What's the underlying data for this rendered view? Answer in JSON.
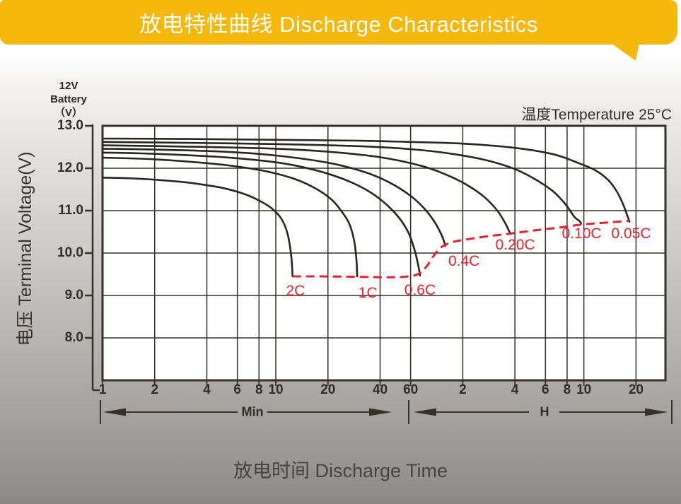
{
  "banner": {
    "title": "放电特性曲线 Discharge Characteristics",
    "bg_color": "#F6B80B",
    "text_color": "#FFFFFF"
  },
  "note": {
    "temperature": "温度Temperature 25°C"
  },
  "y_axis": {
    "unit_lines": [
      "12V",
      "Battery",
      "（V）"
    ],
    "title": "电压 Terminal Voltage(V)",
    "ticks": [
      {
        "label": "13.0",
        "v": 13.0
      },
      {
        "label": "12.0",
        "v": 12.0
      },
      {
        "label": "11.0",
        "v": 11.0
      },
      {
        "label": "10.0",
        "v": 10.0
      },
      {
        "label": "9.0",
        "v": 9.0
      },
      {
        "label": "8.0",
        "v": 8.0
      }
    ]
  },
  "x_axis": {
    "title": "放电时间 Discharge Time",
    "unit_min": "Min",
    "unit_hour": "H",
    "minute_ticks": [
      {
        "label": "1",
        "t": 1
      },
      {
        "label": "2",
        "t": 2
      },
      {
        "label": "4",
        "t": 4
      },
      {
        "label": "6",
        "t": 6
      },
      {
        "label": "8",
        "t": 8
      },
      {
        "label": "10",
        "t": 10
      },
      {
        "label": "20",
        "t": 20
      },
      {
        "label": "40",
        "t": 40
      },
      {
        "label": "60",
        "t": 60
      }
    ],
    "hour_ticks": [
      {
        "label": "2",
        "t": 120
      },
      {
        "label": "4",
        "t": 240
      },
      {
        "label": "6",
        "t": 360
      },
      {
        "label": "8",
        "t": 480
      },
      {
        "label": "10",
        "t": 600
      },
      {
        "label": "20",
        "t": 1200
      }
    ]
  },
  "colors": {
    "curve": "#2B2521",
    "grid": "#363029",
    "cutoff": "#E8212E",
    "plot_bg": "#FFFFFF"
  },
  "chart_data": {
    "type": "line",
    "title": "放电特性曲线 Discharge Characteristics",
    "xlabel": "放电时间 Discharge Time",
    "ylabel": "电压 Terminal Voltage(V)",
    "battery": "12V Battery",
    "temperature": "25°C",
    "x_scale": "log",
    "x_unit": "minutes",
    "x_range_minutes": [
      1,
      1780
    ],
    "y_range": [
      7,
      13
    ],
    "grid": true,
    "series": [
      {
        "name": "0.05C",
        "label_t": 1125,
        "label_v": 10.45,
        "points": [
          [
            1,
            12.7
          ],
          [
            3,
            12.69
          ],
          [
            10,
            12.67
          ],
          [
            30,
            12.65
          ],
          [
            60,
            12.62
          ],
          [
            120,
            12.58
          ],
          [
            240,
            12.48
          ],
          [
            400,
            12.33
          ],
          [
            560,
            12.12
          ],
          [
            700,
            11.95
          ],
          [
            830,
            11.72
          ],
          [
            930,
            11.45
          ],
          [
            1010,
            11.15
          ],
          [
            1065,
            10.9
          ],
          [
            1100,
            10.74
          ]
        ]
      },
      {
        "name": "0.10C",
        "label_t": 583,
        "label_v": 10.45,
        "points": [
          [
            1,
            12.62
          ],
          [
            3,
            12.6
          ],
          [
            10,
            12.57
          ],
          [
            30,
            12.52
          ],
          [
            60,
            12.45
          ],
          [
            100,
            12.35
          ],
          [
            160,
            12.2
          ],
          [
            240,
            11.98
          ],
          [
            320,
            11.72
          ],
          [
            400,
            11.45
          ],
          [
            470,
            11.15
          ],
          [
            530,
            10.85
          ],
          [
            565,
            10.76
          ],
          [
            578,
            10.7
          ]
        ]
      },
      {
        "name": "0.20C",
        "label_t": 241,
        "label_v": 10.18,
        "points": [
          [
            1,
            12.54
          ],
          [
            3,
            12.51
          ],
          [
            10,
            12.46
          ],
          [
            20,
            12.39
          ],
          [
            40,
            12.26
          ],
          [
            70,
            12.05
          ],
          [
            100,
            11.82
          ],
          [
            130,
            11.58
          ],
          [
            160,
            11.32
          ],
          [
            190,
            11.0
          ],
          [
            210,
            10.72
          ],
          [
            222,
            10.52
          ],
          [
            227,
            10.45
          ]
        ]
      },
      {
        "name": "0.4C",
        "label_t": 122,
        "label_v": 9.8,
        "points": [
          [
            1,
            12.46
          ],
          [
            2,
            12.44
          ],
          [
            5,
            12.39
          ],
          [
            10,
            12.3
          ],
          [
            20,
            12.13
          ],
          [
            32,
            11.92
          ],
          [
            45,
            11.67
          ],
          [
            60,
            11.35
          ],
          [
            72,
            11.05
          ],
          [
            82,
            10.75
          ],
          [
            90,
            10.45
          ],
          [
            94,
            10.25
          ],
          [
            95,
            10.17
          ]
        ]
      },
      {
        "name": "0.6C",
        "label_t": 68,
        "label_v": 9.12,
        "points": [
          [
            1,
            12.37
          ],
          [
            2,
            12.34
          ],
          [
            5,
            12.26
          ],
          [
            10,
            12.14
          ],
          [
            16,
            11.98
          ],
          [
            24,
            11.76
          ],
          [
            33,
            11.5
          ],
          [
            42,
            11.2
          ],
          [
            51,
            10.85
          ],
          [
            58,
            10.5
          ],
          [
            63,
            10.1
          ],
          [
            66.5,
            9.7
          ],
          [
            68,
            9.47
          ]
        ]
      },
      {
        "name": "1C",
        "label_t": 34,
        "label_v": 9.05,
        "points": [
          [
            1,
            12.25
          ],
          [
            2,
            12.21
          ],
          [
            4,
            12.12
          ],
          [
            6,
            12.04
          ],
          [
            9,
            11.92
          ],
          [
            13,
            11.74
          ],
          [
            17,
            11.52
          ],
          [
            21,
            11.26
          ],
          [
            24,
            10.98
          ],
          [
            26.5,
            10.7
          ],
          [
            28.3,
            10.3
          ],
          [
            29.2,
            9.85
          ],
          [
            29.5,
            9.45
          ]
        ]
      },
      {
        "name": "2C",
        "label_t": 13,
        "label_v": 9.1,
        "points": [
          [
            1,
            11.78
          ],
          [
            1.5,
            11.76
          ],
          [
            2,
            11.73
          ],
          [
            3,
            11.67
          ],
          [
            4,
            11.6
          ],
          [
            5,
            11.53
          ],
          [
            6.5,
            11.4
          ],
          [
            8,
            11.24
          ],
          [
            9.5,
            11.05
          ],
          [
            10.8,
            10.8
          ],
          [
            11.7,
            10.45
          ],
          [
            12.3,
            9.9
          ],
          [
            12.5,
            9.45
          ]
        ]
      }
    ],
    "cutoff_line": {
      "name": "discharge-cutoff-voltage",
      "style": "dashed",
      "color": "#E8212E",
      "points": [
        [
          12.5,
          9.45
        ],
        [
          18,
          9.45
        ],
        [
          29.5,
          9.44
        ],
        [
          42,
          9.43
        ],
        [
          55,
          9.44
        ],
        [
          66,
          9.5
        ],
        [
          74,
          9.68
        ],
        [
          83,
          9.98
        ],
        [
          91,
          10.15
        ],
        [
          105,
          10.26
        ],
        [
          130,
          10.33
        ],
        [
          170,
          10.4
        ],
        [
          227,
          10.46
        ],
        [
          320,
          10.54
        ],
        [
          430,
          10.6
        ],
        [
          578,
          10.67
        ],
        [
          760,
          10.71
        ],
        [
          950,
          10.74
        ],
        [
          1100,
          10.76
        ]
      ]
    }
  }
}
